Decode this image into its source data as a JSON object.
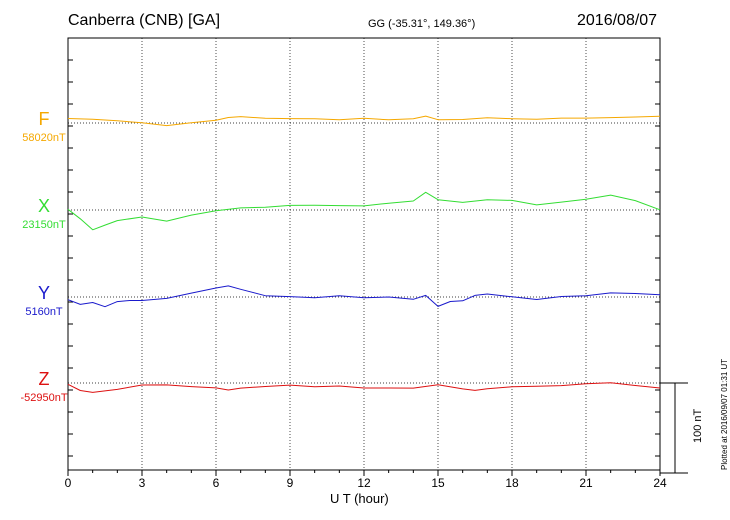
{
  "header": {
    "station": "Canberra (CNB)  [GA]",
    "coords": "GG (-35.31°, 149.36°)",
    "date": "2016/08/07"
  },
  "footer": {
    "plotted": "Plotted at 2016/09/07 01:31  UT"
  },
  "chart_data": {
    "type": "line",
    "xlabel": "U T (hour)",
    "xlim": [
      0,
      24
    ],
    "xticks": [
      0,
      3,
      6,
      9,
      12,
      15,
      18,
      21,
      24
    ],
    "grid": true,
    "scale_bar_nT": 100,
    "scale_bar_label": "100 nT",
    "series": [
      {
        "name": "F",
        "baseline_nT": 58020,
        "baseline_label": "58020nT",
        "color": "#f5a800",
        "x": [
          0,
          1,
          2,
          3,
          4,
          5,
          6,
          6.5,
          7,
          8,
          9,
          10,
          11,
          12,
          13,
          14,
          14.5,
          15,
          16,
          17,
          18,
          19,
          20,
          21,
          22,
          23,
          24
        ],
        "values": [
          5,
          4,
          3,
          0,
          -2,
          0,
          4,
          6,
          7,
          6,
          5,
          5,
          4,
          5,
          4,
          4,
          8,
          4,
          3,
          6,
          4,
          4,
          5,
          5,
          6,
          6,
          8
        ]
      },
      {
        "name": "X",
        "baseline_nT": 23150,
        "baseline_label": "23150nT",
        "color": "#33dd33",
        "x": [
          0,
          0.5,
          1,
          1.5,
          2,
          3,
          4,
          5,
          6,
          7,
          8,
          9,
          10,
          11,
          12,
          13,
          14,
          14.5,
          15,
          16,
          17,
          18,
          19,
          20,
          21,
          22,
          23,
          24
        ],
        "values": [
          0,
          -10,
          -22,
          -16,
          -12,
          -8,
          -12,
          -6,
          0,
          2,
          4,
          5,
          6,
          5,
          5,
          8,
          10,
          20,
          12,
          8,
          12,
          10,
          6,
          8,
          12,
          16,
          10,
          0
        ]
      },
      {
        "name": "Y",
        "baseline_nT": 5160,
        "baseline_label": "5160nT",
        "color": "#1a1acc",
        "x": [
          0,
          0.5,
          1,
          1.5,
          2,
          2.5,
          3,
          4,
          5,
          6,
          6.5,
          7,
          8,
          9,
          10,
          11,
          12,
          13,
          14,
          14.5,
          15,
          15.5,
          16,
          16.5,
          17,
          18,
          19,
          20,
          21,
          22,
          23,
          24
        ],
        "values": [
          -4,
          -8,
          -6,
          -10,
          -6,
          -4,
          -4,
          -2,
          4,
          10,
          12,
          8,
          2,
          0,
          0,
          1,
          0,
          0,
          -2,
          2,
          -10,
          -6,
          -4,
          2,
          4,
          0,
          -2,
          0,
          2,
          4,
          4,
          2
        ]
      },
      {
        "name": "Z",
        "baseline_nT": -52950,
        "baseline_label": "-52950nT",
        "color": "#dd1111",
        "x": [
          0,
          0.5,
          1,
          2,
          3,
          4,
          5,
          6,
          6.5,
          7,
          8,
          9,
          10,
          11,
          12,
          13,
          14,
          15,
          16,
          16.5,
          17,
          18,
          19,
          20,
          21,
          22,
          23,
          24
        ],
        "values": [
          -2,
          -8,
          -10,
          -8,
          -2,
          -3,
          -4,
          -6,
          -8,
          -6,
          -4,
          -3,
          -4,
          -4,
          -5,
          -6,
          -5,
          -2,
          -6,
          -8,
          -6,
          -4,
          -3,
          -3,
          0,
          0,
          -2,
          -6
        ]
      }
    ]
  }
}
